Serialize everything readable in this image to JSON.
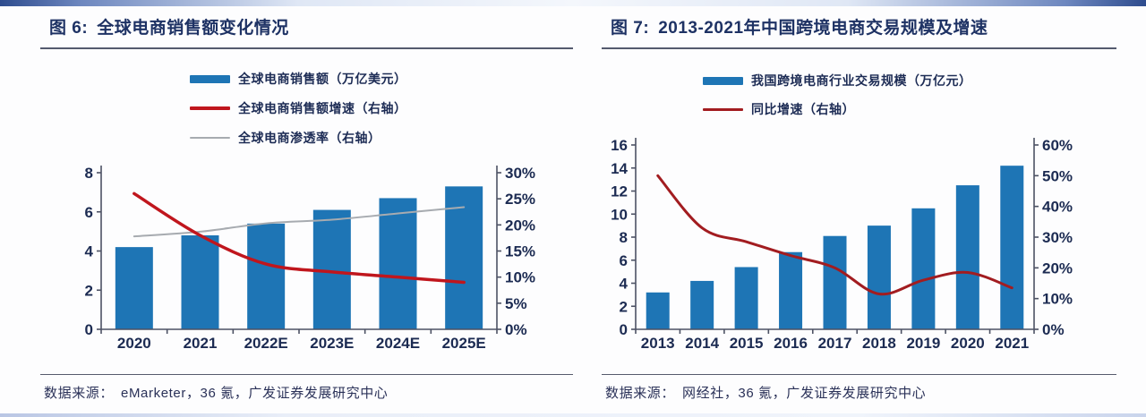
{
  "panels": [
    {
      "figure_label": "图 6:",
      "title": "全球电商销售额变化情况",
      "source_label": "数据来源：",
      "source": "eMarketer，36 氪，广发证券发展研究中心"
    },
    {
      "figure_label": "图 7:",
      "title": "2013-2021年中国跨境电商交易规模及增速",
      "source_label": "数据来源：",
      "source": "网经社，36 氪，广发证券发展研究中心"
    }
  ],
  "colors": {
    "bar_blue": "#1E75B5",
    "line_red_left": "#C0161D",
    "line_red_right": "#A21C20",
    "line_gray": "#A7ABB0",
    "axis": "#4d5264",
    "title_navy": "#1e3264"
  },
  "chart_data": [
    {
      "type": "bar",
      "subtype": "bar+line combo, dual axis",
      "title": "全球电商销售额变化情况",
      "categories": [
        "2020",
        "2021",
        "2022E",
        "2023E",
        "2024E",
        "2025E"
      ],
      "series": [
        {
          "name": "全球电商销售额（万亿美元）",
          "type": "bar",
          "axis": "left",
          "color": "#1E75B5",
          "values": [
            4.2,
            4.8,
            5.4,
            6.1,
            6.7,
            7.3
          ]
        },
        {
          "name": "全球电商销售额增速（右轴）",
          "type": "line",
          "axis": "right",
          "color": "#C0161D",
          "width": 3.5,
          "values": [
            26,
            18,
            12.5,
            11,
            10,
            9
          ]
        },
        {
          "name": "全球电商渗透率（右轴）",
          "type": "line",
          "axis": "right",
          "color": "#A7ABB0",
          "width": 2,
          "values": [
            17.8,
            18.7,
            20.3,
            21,
            22.2,
            23.4
          ]
        }
      ],
      "left_axis": {
        "min": 0,
        "max": 8,
        "step": 2
      },
      "right_axis": {
        "min": 0,
        "max": 30,
        "step": 5,
        "suffix": "%"
      },
      "legend_position": "top",
      "grid": false
    },
    {
      "type": "bar",
      "subtype": "bar+line combo, dual axis",
      "title": "2013-2021年中国跨境电商交易规模及增速",
      "categories": [
        "2013",
        "2014",
        "2015",
        "2016",
        "2017",
        "2018",
        "2019",
        "2020",
        "2021"
      ],
      "series": [
        {
          "name": "我国跨境电商行业交易规模（万亿元）",
          "type": "bar",
          "axis": "left",
          "color": "#1E75B5",
          "values": [
            3.2,
            4.2,
            5.4,
            6.7,
            8.1,
            9.0,
            10.5,
            12.5,
            14.2
          ]
        },
        {
          "name": "同比增速（右轴）",
          "type": "line",
          "axis": "right",
          "color": "#A21C20",
          "width": 3,
          "values": [
            50,
            33,
            28.5,
            24,
            20,
            11.5,
            16,
            18.5,
            13.5
          ]
        }
      ],
      "left_axis": {
        "min": 0,
        "max": 16,
        "step": 2
      },
      "right_axis": {
        "min": 0,
        "max": 60,
        "step": 10,
        "suffix": "%"
      },
      "legend_position": "top",
      "grid": false
    }
  ]
}
